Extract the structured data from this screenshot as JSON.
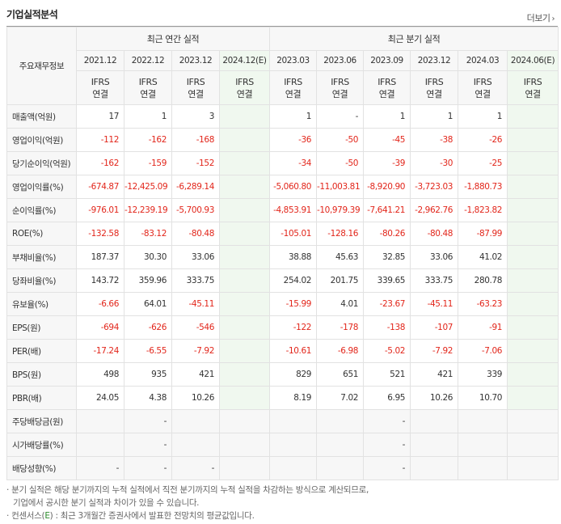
{
  "section_title": "기업실적분석",
  "more_label": "더보기",
  "more_icon": "chevron-right-icon",
  "header": {
    "row_label": "주요재무정보",
    "annual_group": "최근 연간 실적",
    "quarter_group": "최근 분기 실적",
    "annual_periods": [
      "2021.12",
      "2022.12",
      "2023.12",
      "2024.12(E)"
    ],
    "quarter_periods": [
      "2023.03",
      "2023.06",
      "2023.09",
      "2023.12",
      "2024.03",
      "2024.06(E)"
    ],
    "ifrs": "IFRS",
    "consol": "연결"
  },
  "rows": [
    {
      "label": "매출액(억원)",
      "annual": [
        "17",
        "1",
        "3",
        ""
      ],
      "quarter": [
        "1",
        "-",
        "1",
        "1",
        "1",
        ""
      ]
    },
    {
      "label": "영업이익(억원)",
      "annual": [
        "-112",
        "-162",
        "-168",
        ""
      ],
      "quarter": [
        "-36",
        "-50",
        "-45",
        "-38",
        "-26",
        ""
      ]
    },
    {
      "label": "당기순이익(억원)",
      "annual": [
        "-162",
        "-159",
        "-152",
        ""
      ],
      "quarter": [
        "-34",
        "-50",
        "-39",
        "-30",
        "-25",
        ""
      ]
    },
    {
      "label": "영업이익률(%)",
      "annual": [
        "-674.87",
        "-12,425.09",
        "-6,289.14",
        ""
      ],
      "quarter": [
        "-5,060.80",
        "-11,003.81",
        "-8,920.90",
        "-3,723.03",
        "-1,880.73",
        ""
      ]
    },
    {
      "label": "순이익률(%)",
      "annual": [
        "-976.01",
        "-12,239.19",
        "-5,700.93",
        ""
      ],
      "quarter": [
        "-4,853.91",
        "-10,979.39",
        "-7,641.21",
        "-2,962.76",
        "-1,823.82",
        ""
      ]
    },
    {
      "label": "ROE(%)",
      "annual": [
        "-132.58",
        "-83.12",
        "-80.48",
        ""
      ],
      "quarter": [
        "-105.01",
        "-128.16",
        "-80.26",
        "-80.48",
        "-87.99",
        ""
      ]
    },
    {
      "label": "부채비율(%)",
      "annual": [
        "187.37",
        "30.30",
        "33.06",
        ""
      ],
      "quarter": [
        "38.88",
        "45.63",
        "32.85",
        "33.06",
        "41.02",
        ""
      ]
    },
    {
      "label": "당좌비율(%)",
      "annual": [
        "143.72",
        "359.96",
        "333.75",
        ""
      ],
      "quarter": [
        "254.02",
        "201.75",
        "339.65",
        "333.75",
        "280.78",
        ""
      ]
    },
    {
      "label": "유보율(%)",
      "annual": [
        "-6.66",
        "64.01",
        "-45.11",
        ""
      ],
      "quarter": [
        "-15.99",
        "4.01",
        "-23.67",
        "-45.11",
        "-63.23",
        ""
      ]
    },
    {
      "label": "EPS(원)",
      "annual": [
        "-694",
        "-626",
        "-546",
        ""
      ],
      "quarter": [
        "-122",
        "-178",
        "-138",
        "-107",
        "-91",
        ""
      ]
    },
    {
      "label": "PER(배)",
      "annual": [
        "-17.24",
        "-6.55",
        "-7.92",
        ""
      ],
      "quarter": [
        "-10.61",
        "-6.98",
        "-5.02",
        "-7.92",
        "-7.06",
        ""
      ]
    },
    {
      "label": "BPS(원)",
      "annual": [
        "498",
        "935",
        "421",
        ""
      ],
      "quarter": [
        "829",
        "651",
        "521",
        "421",
        "339",
        ""
      ]
    },
    {
      "label": "PBR(배)",
      "annual": [
        "24.05",
        "4.38",
        "10.26",
        ""
      ],
      "quarter": [
        "8.19",
        "7.02",
        "6.95",
        "10.26",
        "10.70",
        ""
      ]
    },
    {
      "label": "주당배당금(원)",
      "annual": [
        "",
        "-",
        "",
        ""
      ],
      "quarter": [
        "",
        "",
        "-",
        "",
        "",
        ""
      ]
    },
    {
      "label": "시가배당률(%)",
      "annual": [
        "",
        "-",
        "",
        ""
      ],
      "quarter": [
        "",
        "",
        "-",
        "",
        "",
        ""
      ]
    },
    {
      "label": "배당성향(%)",
      "annual": [
        "-",
        "-",
        "-",
        ""
      ],
      "quarter": [
        "",
        "",
        "-",
        "",
        "",
        ""
      ]
    }
  ],
  "notes": {
    "line1": "분기 실적은 해당 분기까지의 누적 실적에서 직전 분기까지의 누적 실적을 차감하는 방식으로 계산되므로,",
    "line2": "기업에서 공시한 분기 실적과 차이가 있을 수 있습니다.",
    "line3_prefix": "컨센서스(",
    "line3_e": "E",
    "line3_suffix": ") : 최근 3개월간 증권사에서 발표한 전망치의 평균값입니다."
  },
  "colors": {
    "negative": "#e2261b",
    "ifrs": "#e1631d",
    "estimate_bg": "#f0f8ef",
    "header_bg": "#f7f7f7"
  }
}
